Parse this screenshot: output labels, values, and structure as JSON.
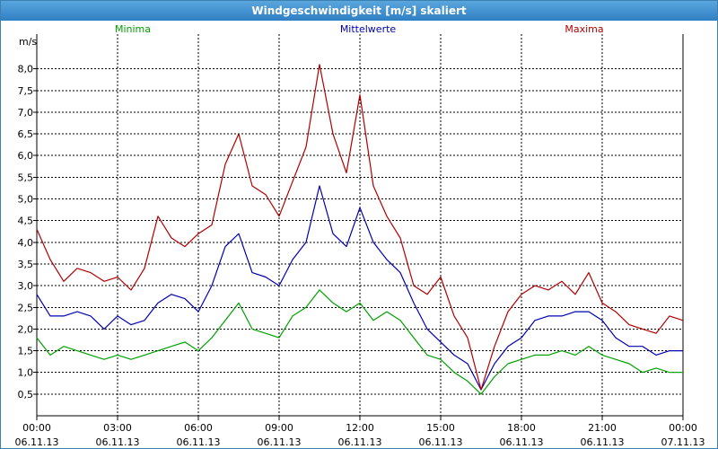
{
  "window": {
    "title": "Windgeschwindigkeit [m/s] skaliert"
  },
  "chart_data": {
    "type": "line",
    "title": "Windgeschwindigkeit [m/s] skaliert",
    "ylabel": "m/s",
    "ylim": [
      0,
      8.8
    ],
    "y_ticks": [
      "0,5",
      "1,0",
      "1,5",
      "2,0",
      "2,5",
      "3,0",
      "3,5",
      "4,0",
      "4,5",
      "5,0",
      "5,5",
      "6,0",
      "6,5",
      "7,0",
      "7,5",
      "8,0"
    ],
    "y_tick_values": [
      0.5,
      1.0,
      1.5,
      2.0,
      2.5,
      3.0,
      3.5,
      4.0,
      4.5,
      5.0,
      5.5,
      6.0,
      6.5,
      7.0,
      7.5,
      8.0
    ],
    "x_range_hours": [
      0,
      24
    ],
    "x_ticks": [
      {
        "hours": 0,
        "time": "00:00",
        "date": "06.11.13"
      },
      {
        "hours": 3,
        "time": "03:00",
        "date": "06.11.13"
      },
      {
        "hours": 6,
        "time": "06:00",
        "date": "06.11.13"
      },
      {
        "hours": 9,
        "time": "09:00",
        "date": "06.11.13"
      },
      {
        "hours": 12,
        "time": "12:00",
        "date": "06.11.13"
      },
      {
        "hours": 15,
        "time": "15:00",
        "date": "06.11.13"
      },
      {
        "hours": 18,
        "time": "18:00",
        "date": "06.11.13"
      },
      {
        "hours": 21,
        "time": "21:00",
        "date": "06.11.13"
      },
      {
        "hours": 24,
        "time": "00:00",
        "date": "07.11.13"
      }
    ],
    "grid": true,
    "x_hours": [
      0,
      0.5,
      1,
      1.5,
      2,
      2.5,
      3,
      3.5,
      4,
      4.5,
      5,
      5.5,
      6,
      6.5,
      7,
      7.5,
      8,
      8.5,
      9,
      9.5,
      10,
      10.5,
      11,
      11.5,
      12,
      12.5,
      13,
      13.5,
      14,
      14.5,
      15,
      15.5,
      16,
      16.5,
      17,
      17.5,
      18,
      18.5,
      19,
      19.5,
      20,
      20.5,
      21,
      21.5,
      22,
      22.5,
      23,
      23.5,
      24
    ],
    "series": [
      {
        "name": "Minima",
        "color": "#00a000",
        "values": [
          1.8,
          1.4,
          1.6,
          1.5,
          1.4,
          1.3,
          1.4,
          1.3,
          1.4,
          1.5,
          1.6,
          1.7,
          1.5,
          1.8,
          2.2,
          2.6,
          2.0,
          1.9,
          1.8,
          2.3,
          2.5,
          2.9,
          2.6,
          2.4,
          2.6,
          2.2,
          2.4,
          2.2,
          1.8,
          1.4,
          1.3,
          1.0,
          0.8,
          0.5,
          0.9,
          1.2,
          1.3,
          1.4,
          1.4,
          1.5,
          1.4,
          1.6,
          1.4,
          1.3,
          1.2,
          1.0,
          1.1,
          1.0,
          1.0
        ]
      },
      {
        "name": "Mittelwerte",
        "color": "#0000b0",
        "values": [
          2.8,
          2.3,
          2.3,
          2.4,
          2.3,
          2.0,
          2.3,
          2.1,
          2.2,
          2.6,
          2.8,
          2.7,
          2.4,
          3.0,
          3.9,
          4.2,
          3.3,
          3.2,
          3.0,
          3.6,
          4.0,
          5.3,
          4.2,
          3.9,
          4.8,
          4.0,
          3.6,
          3.3,
          2.6,
          2.0,
          1.7,
          1.4,
          1.2,
          0.6,
          1.2,
          1.6,
          1.8,
          2.2,
          2.3,
          2.3,
          2.4,
          2.4,
          2.2,
          1.8,
          1.6,
          1.6,
          1.4,
          1.5,
          1.5
        ]
      },
      {
        "name": "Maxima",
        "color": "#b00000",
        "values": [
          4.3,
          3.6,
          3.1,
          3.4,
          3.3,
          3.1,
          3.2,
          2.9,
          3.4,
          4.6,
          4.1,
          3.9,
          4.2,
          4.4,
          5.8,
          6.5,
          5.3,
          5.1,
          4.6,
          5.4,
          6.2,
          8.1,
          6.5,
          5.6,
          7.4,
          5.3,
          4.6,
          4.1,
          3.0,
          2.8,
          3.2,
          2.3,
          1.8,
          0.6,
          1.6,
          2.4,
          2.8,
          3.0,
          2.9,
          3.1,
          2.8,
          3.3,
          2.6,
          2.4,
          2.1,
          2.0,
          1.9,
          2.3,
          2.2
        ]
      }
    ],
    "legend_placement": "top"
  }
}
